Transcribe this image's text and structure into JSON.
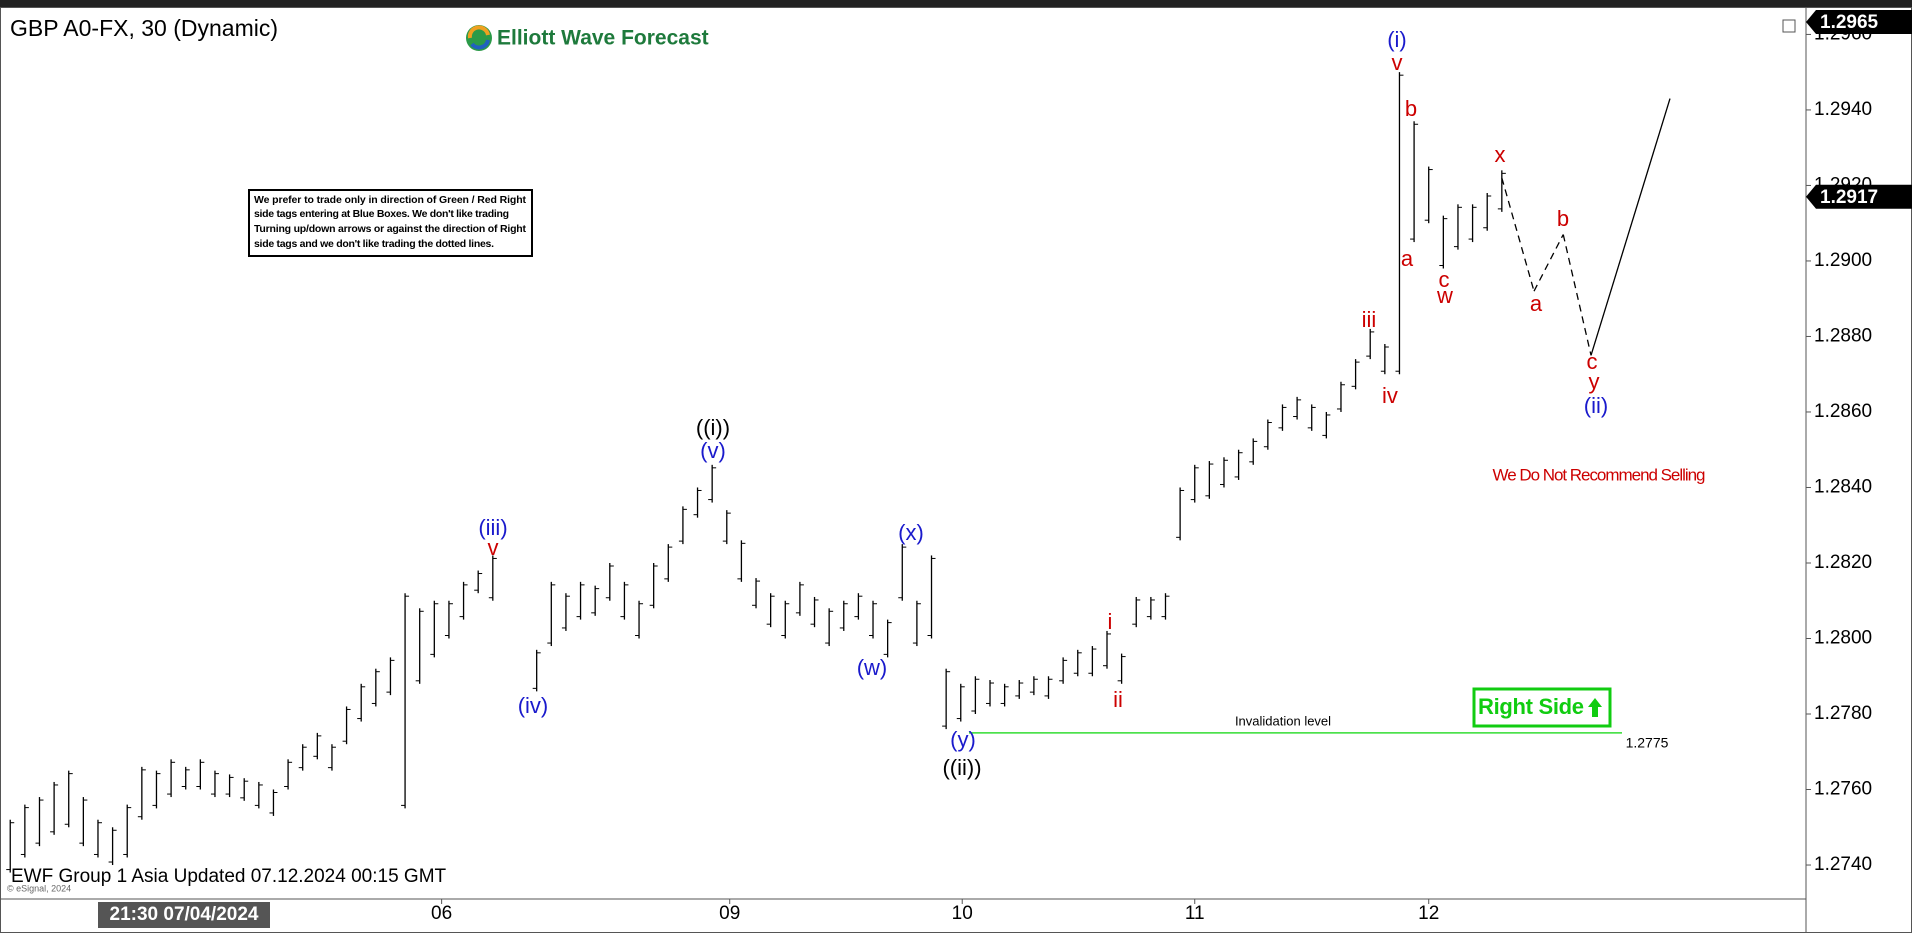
{
  "chart_data": {
    "type": "ohlc",
    "title": "GBP A0-FX, 30 (Dynamic)",
    "logo": "Elliott Wave Forecast",
    "footer": "EWF Group 1 Asia Updated 07.12.2024 00:15 GMT",
    "copyright": "© eSignal, 2024",
    "cursor_time": "21:30 07/04/2024",
    "note": {
      "lines": [
        "We prefer to trade only in direction of Green / Red Right",
        "side tags entering at Blue Boxes. We don't like trading",
        "Turning up/down arrows or against the direction of Right",
        "side tags and we don't like trading the dotted lines."
      ]
    },
    "warning": "We Do Not Recommend Selling",
    "right_side": "Right Side",
    "color": "#000000",
    "low": [
      1.2738,
      1.2742,
      1.2745,
      1.2748,
      1.275,
      1.2745,
      1.2742,
      1.274,
      1.2742,
      1.2752,
      1.2755,
      1.2758,
      1.276,
      1.276,
      1.2758,
      1.2758,
      1.2757,
      1.2755,
      1.2753,
      1.276,
      1.2765,
      1.2768,
      1.2765,
      1.2772,
      1.2778,
      1.2782,
      1.2785,
      1.2755,
      1.2788,
      1.2795,
      1.28,
      1.2805,
      1.2812,
      1.281,
      null,
      null,
      1.2786,
      1.2798,
      1.2802,
      1.2805,
      1.2806,
      1.281,
      1.2805,
      1.28,
      1.2808,
      1.2815,
      1.2825,
      1.2832,
      1.2836,
      1.2825,
      1.2815,
      1.2808,
      1.2803,
      1.28,
      1.2806,
      1.2803,
      1.2798,
      1.2802,
      1.2805,
      1.28,
      1.2795,
      1.281,
      1.2798,
      1.28,
      1.2776,
      1.2778,
      1.278,
      1.2782,
      1.2782,
      1.2784,
      1.2785,
      1.2784,
      1.2788,
      1.279,
      1.279,
      1.2792,
      1.2788,
      1.2803,
      1.2805,
      1.2805,
      1.2826,
      1.2836,
      1.2837,
      1.284,
      1.2842,
      1.2846,
      1.285,
      1.2855,
      1.2858,
      1.2855,
      1.2853,
      1.286,
      1.2866,
      1.2874,
      1.287,
      1.287,
      1.2905,
      1.291,
      1.2898,
      1.2903,
      1.2905,
      1.2908,
      1.2913
    ],
    "high": [
      1.2752,
      1.2756,
      1.2758,
      1.2762,
      1.2765,
      1.2758,
      1.2752,
      1.275,
      1.2756,
      1.2766,
      1.2765,
      1.2768,
      1.2766,
      1.2768,
      1.2765,
      1.2764,
      1.2763,
      1.2762,
      1.276,
      1.2768,
      1.2772,
      1.2775,
      1.2772,
      1.2782,
      1.2788,
      1.2792,
      1.2795,
      1.2812,
      1.2808,
      1.281,
      1.281,
      1.2815,
      1.2818,
      1.2822,
      null,
      null,
      1.2797,
      1.2815,
      1.2812,
      1.2815,
      1.2814,
      1.282,
      1.2815,
      1.281,
      1.282,
      1.2825,
      1.2835,
      1.284,
      1.2846,
      1.2834,
      1.2826,
      1.2816,
      1.2812,
      1.281,
      1.2815,
      1.2811,
      1.2808,
      1.281,
      1.2812,
      1.281,
      1.2805,
      1.2825,
      1.281,
      1.2822,
      1.2792,
      1.2788,
      1.279,
      1.2789,
      1.2788,
      1.2789,
      1.279,
      1.279,
      1.2795,
      1.2797,
      1.2798,
      1.2802,
      1.2796,
      1.2811,
      1.2811,
      1.2812,
      1.284,
      1.2846,
      1.2847,
      1.2848,
      1.285,
      1.2853,
      1.2858,
      1.2862,
      1.2864,
      1.2862,
      1.286,
      1.2868,
      1.2874,
      1.2882,
      1.2878,
      1.295,
      1.2937,
      1.2925,
      1.2912,
      1.2915,
      1.2915,
      1.2918,
      1.2924
    ],
    "projection": {
      "x": [
        102,
        104.2,
        106.2,
        108.1,
        113.5
      ],
      "y": [
        1.2922,
        1.2892,
        1.2907,
        1.2875,
        1.2943
      ]
    },
    "invalidation": {
      "value": 1.2775,
      "label": "1.2775",
      "text": "Invalidation level",
      "color": "#33dd33"
    },
    "price_tags": [
      {
        "value": 1.2965,
        "label": "1.2965"
      },
      {
        "value": 1.2917,
        "label": "1.2917"
      }
    ],
    "wave_labels": [
      {
        "text": "(i)",
        "color": "#1a1acc"
      },
      {
        "text": "v",
        "color": "#cc0000"
      },
      {
        "text": "b",
        "color": "#cc0000"
      },
      {
        "text": "x",
        "color": "#cc0000"
      },
      {
        "text": "a",
        "color": "#cc0000"
      },
      {
        "text": "c",
        "color": "#cc0000"
      },
      {
        "text": "w",
        "color": "#cc0000"
      },
      {
        "text": "b",
        "color": "#cc0000"
      },
      {
        "text": "a",
        "color": "#cc0000"
      },
      {
        "text": "iii",
        "color": "#cc0000"
      },
      {
        "text": "iv",
        "color": "#cc0000"
      },
      {
        "text": "c",
        "color": "#cc0000"
      },
      {
        "text": "y",
        "color": "#cc0000"
      },
      {
        "text": "(ii)",
        "color": "#1a1acc"
      },
      {
        "text": "((i))",
        "color": "#000000"
      },
      {
        "text": "(v)",
        "color": "#1a1acc"
      },
      {
        "text": "(iii)",
        "color": "#1a1acc"
      },
      {
        "text": "v",
        "color": "#cc0000"
      },
      {
        "text": "(x)",
        "color": "#1a1acc"
      },
      {
        "text": "(iv)",
        "color": "#1a1acc"
      },
      {
        "text": "(w)",
        "color": "#1a1acc"
      },
      {
        "text": "i",
        "color": "#cc0000"
      },
      {
        "text": "ii",
        "color": "#cc0000"
      },
      {
        "text": "(y)",
        "color": "#1a1acc"
      },
      {
        "text": "((ii))",
        "color": "#000000"
      }
    ],
    "xlim": [
      -0.7,
      122.8
    ],
    "xticks": [
      {
        "value": 29.5,
        "label": "06"
      },
      {
        "value": 49.2,
        "label": "09"
      },
      {
        "value": 65.1,
        "label": "10"
      },
      {
        "value": 81,
        "label": "11"
      },
      {
        "value": 97,
        "label": "12"
      }
    ],
    "ylim": [
      1.2731,
      1.2967
    ],
    "yticks": [
      {
        "value": 1.274,
        "label": "1.2740"
      },
      {
        "value": 1.276,
        "label": "1.2760"
      },
      {
        "value": 1.278,
        "label": "1.2780"
      },
      {
        "value": 1.28,
        "label": "1.2800"
      },
      {
        "value": 1.282,
        "label": "1.2820"
      },
      {
        "value": 1.284,
        "label": "1.2840"
      },
      {
        "value": 1.286,
        "label": "1.2860"
      },
      {
        "value": 1.288,
        "label": "1.2880"
      },
      {
        "value": 1.29,
        "label": "1.2900"
      },
      {
        "value": 1.292,
        "label": "1.2920"
      },
      {
        "value": 1.294,
        "label": "1.2940"
      },
      {
        "value": 1.296,
        "label": "1.2960"
      }
    ]
  }
}
